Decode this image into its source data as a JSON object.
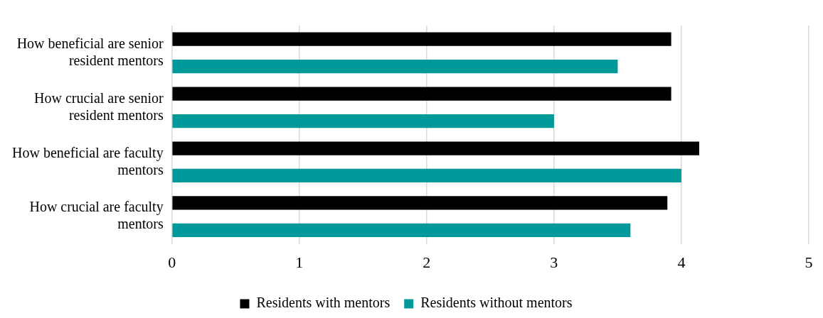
{
  "chart_data": {
    "type": "bar",
    "orientation": "horizontal",
    "categories": [
      "How beneficial are senior resident mentors",
      "How crucial are senior resident mentors",
      "How beneficial are faculty mentors",
      "How crucial are faculty mentors"
    ],
    "series": [
      {
        "name": "Residents with mentors",
        "color": "#000000",
        "values": [
          3.92,
          3.92,
          4.14,
          3.89
        ]
      },
      {
        "name": "Residents without mentors",
        "color": "#009999",
        "values": [
          3.5,
          3.0,
          4.0,
          3.6
        ]
      }
    ],
    "xlim": [
      0,
      5
    ],
    "xticks": [
      0,
      1,
      2,
      3,
      4,
      5
    ],
    "grid": "x",
    "legend": "bottom"
  }
}
